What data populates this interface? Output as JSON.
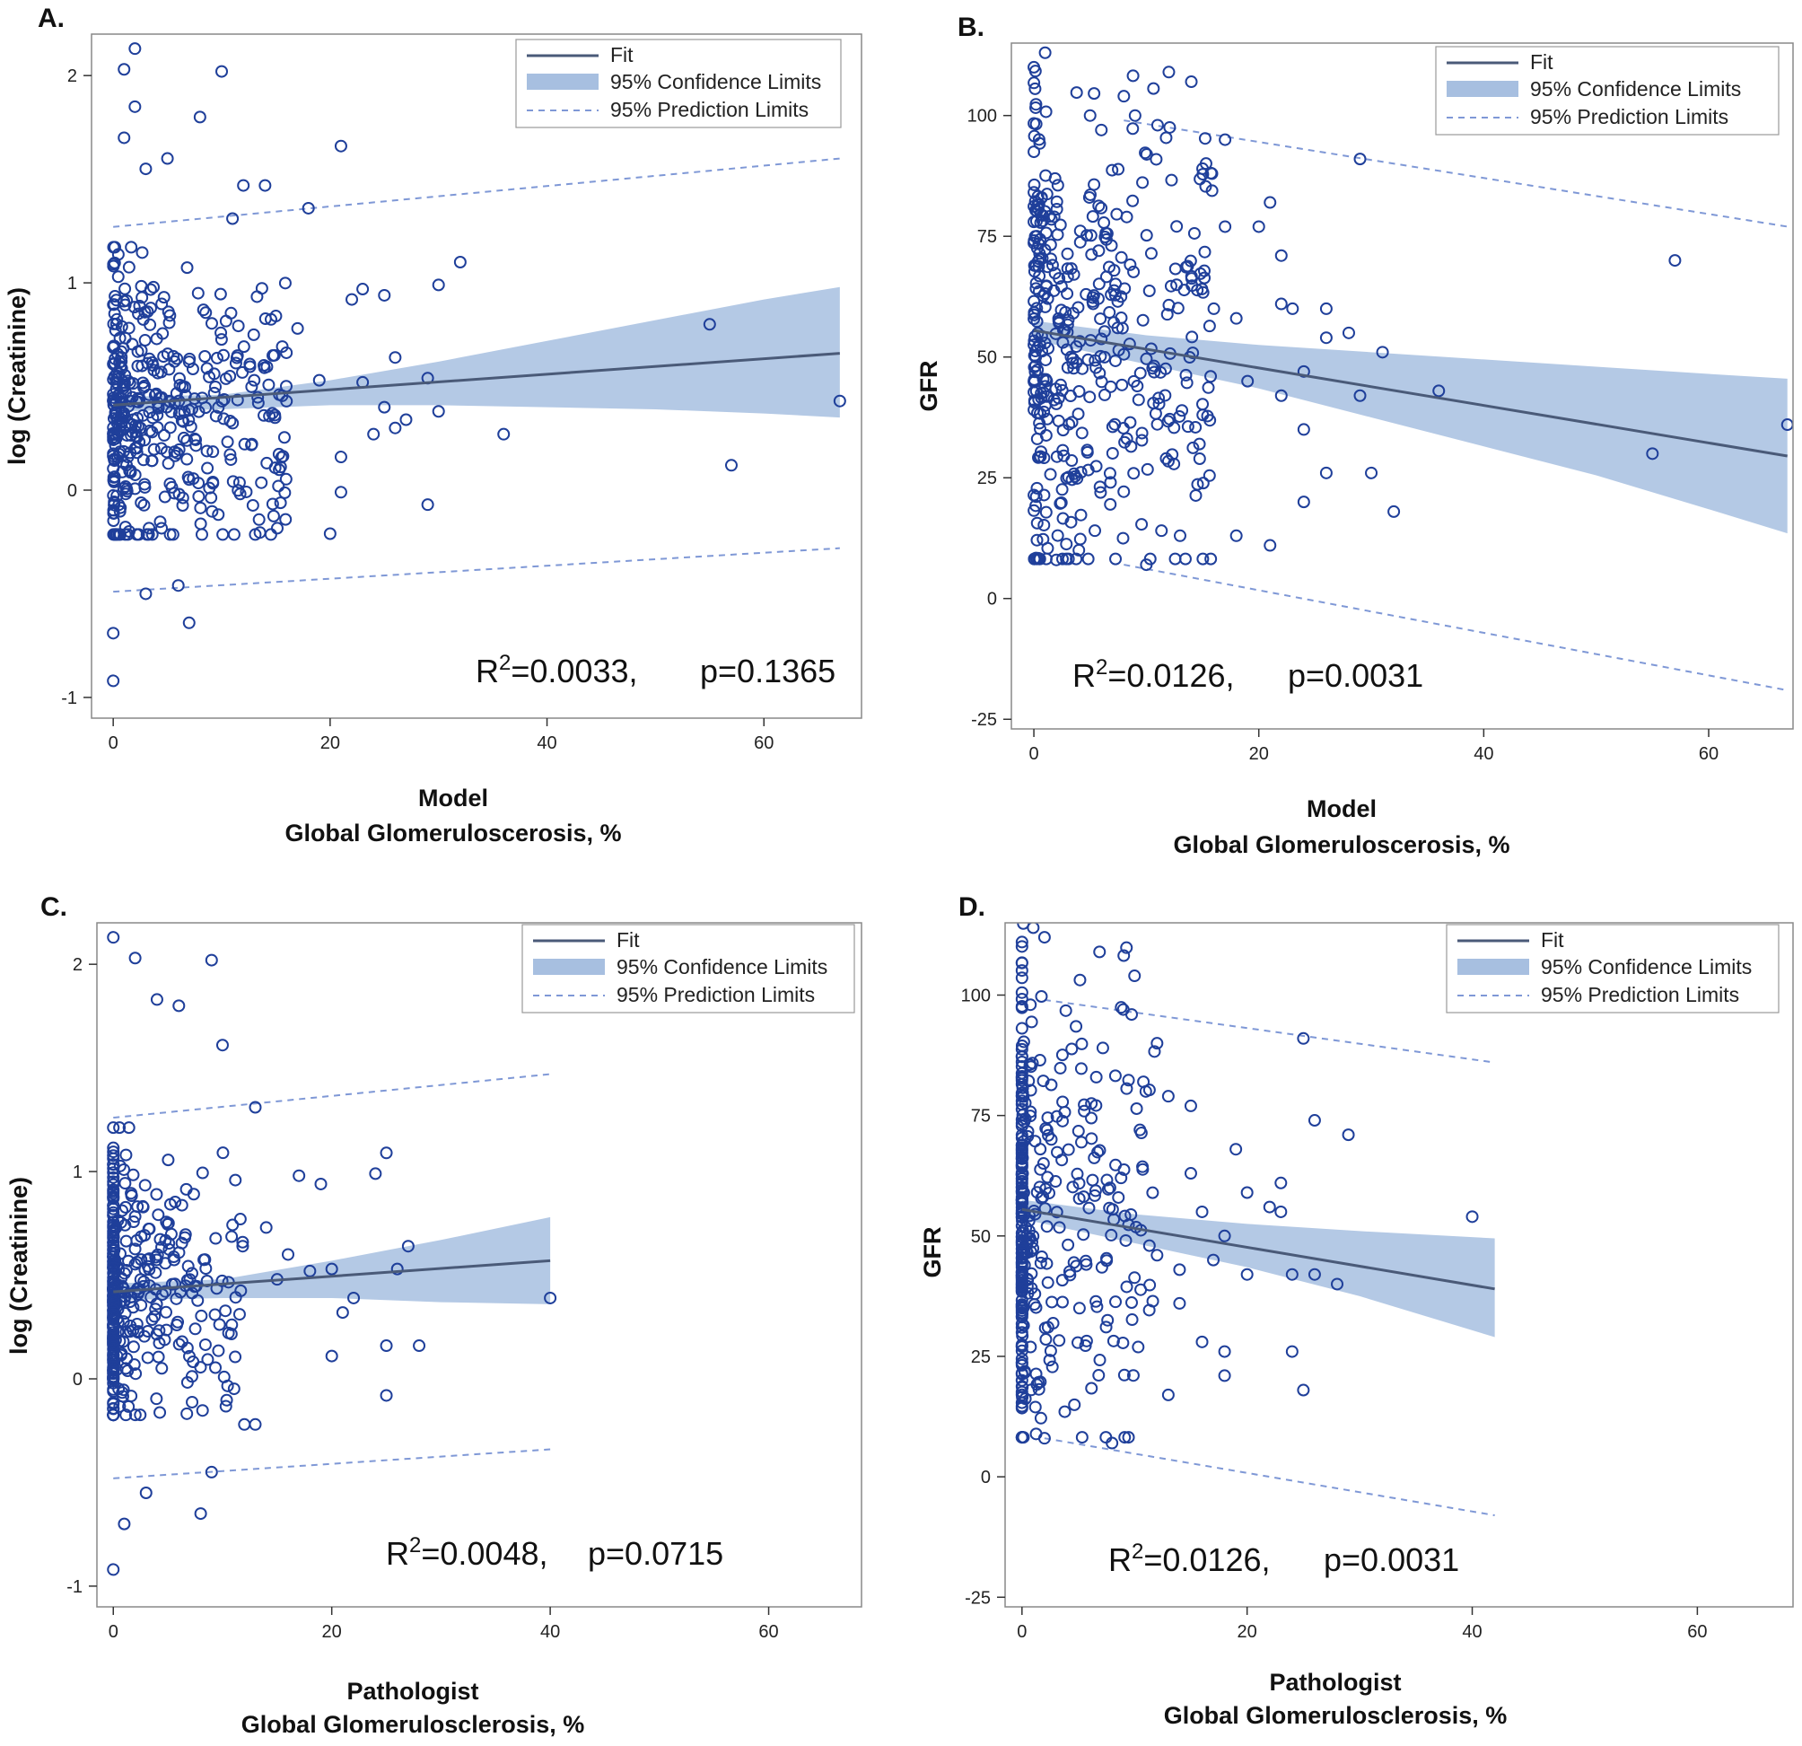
{
  "colors": {
    "marker": "#1f3f9a",
    "fit_line": "#4a5a78",
    "confidence_band": "#a7bfe0",
    "prediction_line": "#7f98d6",
    "frame": "#888888"
  },
  "chart_data": [
    {
      "id": "A",
      "panel_label": "A.",
      "type": "scatter",
      "xlabel_line1": "Model",
      "xlabel_line2": "Global Glomeruloscerosis, %",
      "ylabel": "log (Creatinine)",
      "xlim": [
        -2,
        69
      ],
      "ylim": [
        -1.1,
        2.2
      ],
      "xticks": [
        0,
        20,
        40,
        60
      ],
      "yticks": [
        -1,
        0,
        1,
        2
      ],
      "legend": {
        "position": "top-right",
        "fit": "Fit",
        "confidence": "95% Confidence Limits",
        "prediction": "95% Prediction Limits"
      },
      "annotation": {
        "r2_prefix": "R",
        "r2_sup": "2",
        "r2_value": "=0.0033,",
        "p_text": "p=0.1365"
      },
      "fit": {
        "x0": 0,
        "y0": 0.41,
        "x1": 67,
        "y1": 0.66
      },
      "ci": {
        "x": [
          0,
          10,
          20,
          30,
          40,
          50,
          60,
          67
        ],
        "upper": [
          0.45,
          0.46,
          0.53,
          0.62,
          0.72,
          0.82,
          0.92,
          0.98
        ],
        "lower": [
          0.38,
          0.39,
          0.41,
          0.41,
          0.4,
          0.39,
          0.37,
          0.35
        ]
      },
      "pi": {
        "x0": 0,
        "upper0": 1.27,
        "lower0": -0.49,
        "x1": 67,
        "upper1": 1.6,
        "lower1": -0.28
      },
      "cluster": {
        "n": 420,
        "x_max": 16,
        "y_center": 0.38,
        "y_spread": 0.33
      },
      "points": [
        [
          55,
          0.8
        ],
        [
          67,
          0.43
        ],
        [
          57,
          0.12
        ],
        [
          36,
          0.27
        ],
        [
          32,
          1.1
        ],
        [
          30,
          0.99
        ],
        [
          29,
          -0.07
        ],
        [
          26,
          0.64
        ],
        [
          25,
          0.94
        ],
        [
          23,
          0.97
        ],
        [
          22,
          0.92
        ],
        [
          21,
          1.66
        ],
        [
          23,
          0.52
        ],
        [
          24,
          0.27
        ],
        [
          21,
          0.16
        ],
        [
          21,
          -0.01
        ],
        [
          20,
          -0.21
        ],
        [
          19,
          0.53
        ],
        [
          29,
          0.54
        ],
        [
          30,
          0.38
        ],
        [
          26,
          0.3
        ],
        [
          18,
          1.36
        ],
        [
          11,
          1.31
        ],
        [
          14,
          1.47
        ],
        [
          10,
          2.02
        ],
        [
          2,
          2.13
        ],
        [
          1,
          2.03
        ],
        [
          0,
          -0.69
        ],
        [
          0,
          -0.92
        ],
        [
          7,
          -0.64
        ],
        [
          3,
          -0.5
        ],
        [
          6,
          -0.46
        ],
        [
          12,
          1.47
        ],
        [
          17,
          0.78
        ],
        [
          15,
          0.84
        ],
        [
          8,
          1.8
        ],
        [
          5,
          1.6
        ],
        [
          2,
          1.85
        ],
        [
          3,
          1.55
        ],
        [
          1,
          1.7
        ],
        [
          13,
          0.53
        ],
        [
          25,
          0.4
        ],
        [
          27,
          0.34
        ]
      ]
    },
    {
      "id": "B",
      "panel_label": "B.",
      "type": "scatter",
      "xlabel_line1": "Model",
      "xlabel_line2": "Global Glomeruloscerosis, %",
      "ylabel": "GFR",
      "xlim": [
        -2,
        67.5
      ],
      "ylim": [
        -27,
        115
      ],
      "xticks": [
        0,
        20,
        40,
        60
      ],
      "yticks": [
        -25,
        0,
        25,
        50,
        75,
        100
      ],
      "legend": {
        "position": "top-right",
        "fit": "Fit",
        "confidence": "95% Confidence Limits",
        "prediction": "95% Prediction Limits"
      },
      "annotation": {
        "r2_prefix": "R",
        "r2_sup": "2",
        "r2_value": "=0.0126,",
        "p_text": "p=0.0031"
      },
      "fit": {
        "x0": 0,
        "y0": 55.5,
        "x1": 67,
        "y1": 29.5
      },
      "ci": {
        "x": [
          0,
          10,
          20,
          30,
          40,
          50,
          60,
          67
        ],
        "upper": [
          57.5,
          54.5,
          52.5,
          51.0,
          49.5,
          48.0,
          46.5,
          45.5
        ],
        "lower": [
          53.5,
          48.5,
          43.5,
          37.5,
          31.5,
          25.5,
          18.5,
          13.5
        ]
      },
      "pi": {
        "x0": 8,
        "upper0": 99,
        "lower0": 7,
        "x1": 67,
        "upper1": 77,
        "lower1": -19
      },
      "cluster": {
        "n": 420,
        "x_max": 16,
        "y_center": 55,
        "y_spread": 26
      },
      "points": [
        [
          67,
          36
        ],
        [
          57,
          70
        ],
        [
          55,
          30
        ],
        [
          36,
          43
        ],
        [
          32,
          18
        ],
        [
          31,
          51
        ],
        [
          30,
          26
        ],
        [
          29,
          42
        ],
        [
          29,
          91
        ],
        [
          28,
          55
        ],
        [
          26,
          26
        ],
        [
          26,
          60
        ],
        [
          26,
          54
        ],
        [
          24,
          47
        ],
        [
          24,
          35
        ],
        [
          24,
          20
        ],
        [
          23,
          60
        ],
        [
          22,
          71
        ],
        [
          22,
          42
        ],
        [
          22,
          61
        ],
        [
          21,
          82
        ],
        [
          21,
          11
        ],
        [
          20,
          77
        ],
        [
          19,
          45
        ],
        [
          17,
          95
        ],
        [
          14,
          107
        ],
        [
          15,
          89
        ],
        [
          17,
          77
        ],
        [
          18,
          13
        ],
        [
          12,
          109
        ],
        [
          11,
          98
        ],
        [
          9,
          100
        ],
        [
          10,
          7
        ],
        [
          13,
          13
        ],
        [
          1,
          113
        ],
        [
          0,
          110
        ],
        [
          5,
          100
        ],
        [
          6,
          97
        ],
        [
          2,
          8
        ],
        [
          4,
          10
        ],
        [
          8,
          104
        ],
        [
          16,
          60
        ],
        [
          18,
          58
        ]
      ]
    },
    {
      "id": "C",
      "panel_label": "C.",
      "type": "scatter",
      "xlabel_line1": "Pathologist",
      "xlabel_line2": "Global Glomerulosclerosis, %",
      "ylabel": "log (Creatinine)",
      "xlim": [
        -1.5,
        68.5
      ],
      "ylim": [
        -1.1,
        2.2
      ],
      "xticks": [
        0,
        20,
        40,
        60
      ],
      "yticks": [
        -1,
        0,
        1,
        2
      ],
      "legend": {
        "position": "top-right",
        "fit": "Fit",
        "confidence": "95% Confidence Limits",
        "prediction": "95% Prediction Limits"
      },
      "annotation": {
        "r2_prefix": "R",
        "r2_sup": "2",
        "r2_value": "=0.0048,",
        "p_text": "p=0.0715"
      },
      "fit": {
        "x0": 0,
        "y0": 0.42,
        "x1": 40,
        "y1": 0.57
      },
      "ci": {
        "x": [
          0,
          10,
          20,
          30,
          40
        ],
        "upper": [
          0.46,
          0.48,
          0.57,
          0.67,
          0.78
        ],
        "lower": [
          0.38,
          0.39,
          0.39,
          0.37,
          0.36
        ]
      },
      "pi": {
        "x0": 0,
        "upper0": 1.26,
        "lower0": -0.48,
        "x1": 40,
        "upper1": 1.47,
        "lower1": -0.34
      },
      "cluster": {
        "n": 380,
        "x_max": 12,
        "y_center": 0.42,
        "y_spread": 0.33
      },
      "points": [
        [
          40,
          0.39
        ],
        [
          28,
          0.16
        ],
        [
          25,
          1.09
        ],
        [
          24,
          0.99
        ],
        [
          26,
          0.53
        ],
        [
          27,
          0.64
        ],
        [
          25,
          -0.08
        ],
        [
          25,
          0.16
        ],
        [
          22,
          0.39
        ],
        [
          20,
          0.53
        ],
        [
          19,
          0.94
        ],
        [
          18,
          0.52
        ],
        [
          17,
          0.98
        ],
        [
          20,
          0.11
        ],
        [
          21,
          0.32
        ],
        [
          9,
          2.02
        ],
        [
          2,
          2.03
        ],
        [
          10,
          1.61
        ],
        [
          0,
          2.13
        ],
        [
          13,
          1.31
        ],
        [
          14,
          0.73
        ],
        [
          8,
          -0.65
        ],
        [
          9,
          -0.45
        ],
        [
          3,
          -0.55
        ],
        [
          1,
          -0.7
        ],
        [
          0,
          -0.92
        ],
        [
          13,
          -0.22
        ],
        [
          12,
          -0.22
        ],
        [
          16,
          0.6
        ],
        [
          15,
          0.48
        ],
        [
          6,
          1.8
        ],
        [
          4,
          1.83
        ]
      ]
    },
    {
      "id": "D",
      "panel_label": "D.",
      "type": "scatter",
      "xlabel_line1": "Pathologist",
      "xlabel_line2": "Global Glomerulosclerosis, %",
      "ylabel": "GFR",
      "xlim": [
        -1.5,
        68.5
      ],
      "ylim": [
        -27,
        115
      ],
      "xticks": [
        0,
        20,
        40,
        60
      ],
      "yticks": [
        -25,
        0,
        25,
        50,
        75,
        100
      ],
      "legend": {
        "position": "top-right",
        "fit": "Fit",
        "confidence": "95% Confidence Limits",
        "prediction": "95% Prediction Limits"
      },
      "annotation": {
        "r2_prefix": "R",
        "r2_sup": "2",
        "r2_value": "=0.0126,",
        "p_text": "p=0.0031"
      },
      "fit": {
        "x0": 0,
        "y0": 55.5,
        "x1": 42,
        "y1": 39
      },
      "ci": {
        "x": [
          0,
          10,
          20,
          30,
          42
        ],
        "upper": [
          57.5,
          54.5,
          52.5,
          51.0,
          49.5
        ],
        "lower": [
          53.5,
          48.5,
          43.5,
          37.5,
          29
        ]
      },
      "pi": {
        "x0": 2,
        "upper0": 99,
        "lower0": 8,
        "x1": 42,
        "upper1": 86,
        "lower1": -8
      },
      "cluster": {
        "n": 380,
        "x_max": 12,
        "y_center": 55,
        "y_spread": 26
      },
      "points": [
        [
          40,
          54
        ],
        [
          29,
          71
        ],
        [
          28,
          40
        ],
        [
          26,
          42
        ],
        [
          26,
          74
        ],
        [
          25,
          91
        ],
        [
          25,
          18
        ],
        [
          24,
          26
        ],
        [
          24,
          42
        ],
        [
          23,
          55
        ],
        [
          23,
          61
        ],
        [
          22,
          56
        ],
        [
          20,
          59
        ],
        [
          20,
          42
        ],
        [
          19,
          68
        ],
        [
          18,
          50
        ],
        [
          18,
          26
        ],
        [
          18,
          21
        ],
        [
          17,
          45
        ],
        [
          16,
          28
        ],
        [
          15,
          77
        ],
        [
          15,
          63
        ],
        [
          14,
          43
        ],
        [
          14,
          36
        ],
        [
          13,
          79
        ],
        [
          13,
          17
        ],
        [
          12,
          90
        ],
        [
          11,
          80
        ],
        [
          10,
          104
        ],
        [
          9,
          97
        ],
        [
          2,
          112
        ],
        [
          1,
          114
        ],
        [
          8,
          7
        ],
        [
          2,
          8
        ],
        [
          12,
          46
        ],
        [
          16,
          55
        ]
      ]
    }
  ]
}
